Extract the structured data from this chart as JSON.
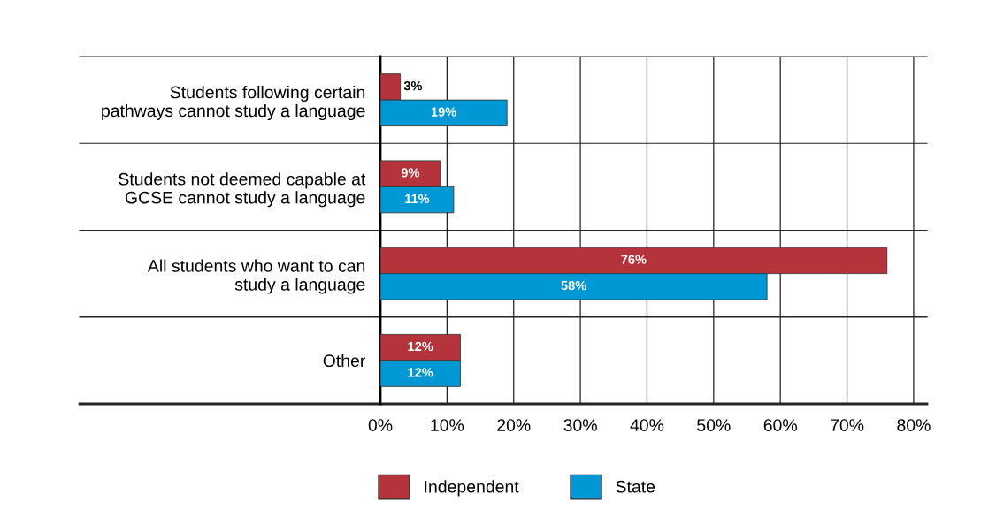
{
  "chart_data": {
    "type": "bar",
    "orientation": "horizontal",
    "categories": [
      "Students following certain\npathways cannot study a language",
      "Students not deemed capable at\nGCSE cannot study a language",
      "All students who want to can\nstudy a language",
      "Other"
    ],
    "series": [
      {
        "name": "Independent",
        "color": "#b5333a",
        "values": [
          3,
          9,
          76,
          12
        ],
        "value_labels": [
          "3%",
          "9%",
          "76%",
          "12%"
        ]
      },
      {
        "name": "State",
        "color": "#0098d4",
        "values": [
          19,
          11,
          58,
          12
        ],
        "value_labels": [
          "19%",
          "11%",
          "58%",
          "12%"
        ]
      }
    ],
    "xlim": [
      0,
      82
    ],
    "xticks": [
      {
        "value": 0,
        "label": "0%"
      },
      {
        "value": 10,
        "label": "10%"
      },
      {
        "value": 20,
        "label": "20%"
      },
      {
        "value": 30,
        "label": "30%"
      },
      {
        "value": 40,
        "label": "40%"
      },
      {
        "value": 50,
        "label": "50%"
      },
      {
        "value": 60,
        "label": "60%"
      },
      {
        "value": 70,
        "label": "70%"
      },
      {
        "value": 80,
        "label": "80%"
      }
    ],
    "grid": "x",
    "legend": "bottom"
  }
}
